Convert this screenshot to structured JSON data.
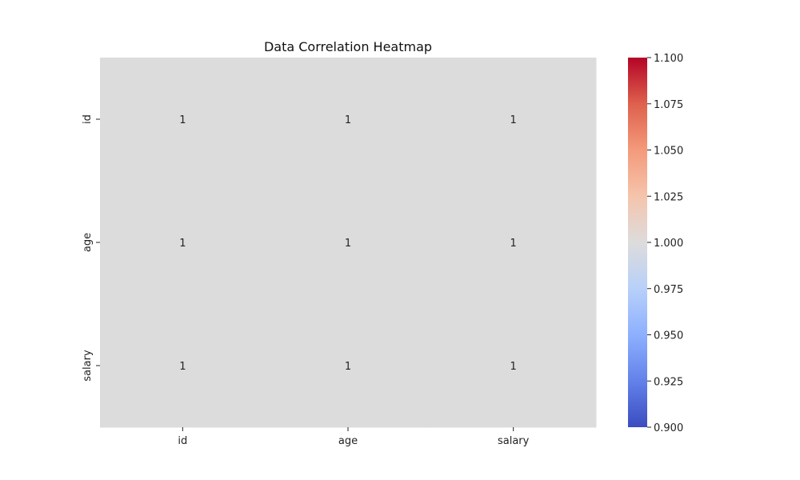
{
  "chart_data": {
    "type": "heatmap",
    "title": "Data Correlation Heatmap",
    "x_categories": [
      "id",
      "age",
      "salary"
    ],
    "y_categories": [
      "id",
      "age",
      "salary"
    ],
    "values": [
      [
        1,
        1,
        1
      ],
      [
        1,
        1,
        1
      ],
      [
        1,
        1,
        1
      ]
    ],
    "annotations": [
      "1",
      "1",
      "1",
      "1",
      "1",
      "1",
      "1",
      "1",
      "1"
    ],
    "colorbar": {
      "min": 0.9,
      "max": 1.1,
      "ticks": [
        "0.900",
        "0.925",
        "0.950",
        "0.975",
        "1.000",
        "1.025",
        "1.050",
        "1.075",
        "1.100"
      ],
      "colormap": "coolwarm",
      "colors": [
        "#3b4cc0",
        "#6282ea",
        "#8db0fe",
        "#b8d0f9",
        "#dddcdc",
        "#f5c4ac",
        "#f49a7b",
        "#de604d",
        "#b40426"
      ]
    },
    "grid": false,
    "legend": "right colorbar"
  }
}
